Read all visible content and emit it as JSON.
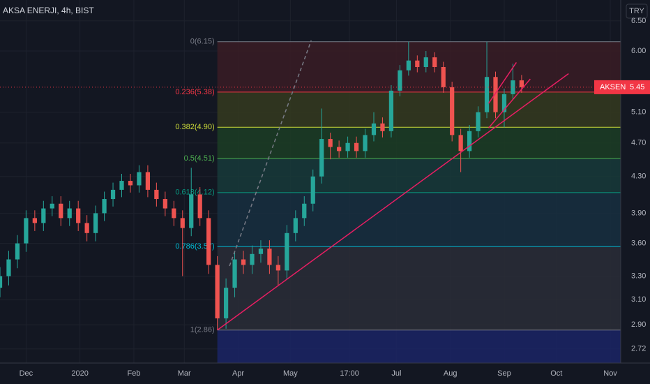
{
  "chart_data": {
    "type": "candlestick",
    "title": "AKSA ENERJI, 4h, BIST",
    "currency": "TRY",
    "log_scale": true,
    "grid": true,
    "up_color": "#26a69a",
    "down_color": "#ef5350",
    "x": [
      15,
      20,
      25,
      30,
      35,
      40,
      45,
      50,
      55,
      60,
      65,
      70,
      75,
      80,
      85,
      90,
      95,
      100,
      105,
      110,
      115,
      120,
      125,
      130,
      135,
      140,
      145,
      150,
      155,
      160,
      165,
      170,
      175,
      180,
      185,
      190,
      195,
      200,
      205,
      210,
      215,
      220,
      225,
      230,
      235,
      240,
      245,
      250,
      255,
      260,
      265,
      270,
      275,
      280,
      285,
      290,
      295,
      300,
      305,
      310,
      315
    ],
    "open": [
      3.2,
      3.3,
      3.45,
      3.6,
      3.85,
      3.8,
      3.95,
      4.0,
      3.85,
      3.95,
      3.8,
      3.7,
      3.9,
      4.05,
      4.15,
      4.25,
      4.2,
      4.35,
      4.15,
      4.05,
      3.95,
      3.85,
      3.75,
      4.1,
      3.85,
      3.4,
      2.95,
      3.2,
      3.45,
      3.4,
      3.5,
      3.55,
      3.4,
      3.35,
      3.7,
      3.85,
      4.0,
      4.3,
      4.75,
      4.65,
      4.6,
      4.7,
      4.6,
      4.8,
      4.95,
      4.85,
      5.4,
      5.7,
      5.85,
      5.75,
      5.9,
      5.75,
      5.45,
      4.8,
      4.6,
      4.85,
      5.1,
      5.6,
      5.1,
      5.35,
      5.55
    ],
    "high": [
      3.38,
      3.53,
      3.68,
      3.93,
      3.93,
      4.03,
      4.08,
      4.08,
      4.03,
      4.03,
      3.88,
      3.98,
      4.13,
      4.23,
      4.33,
      4.33,
      4.43,
      4.43,
      4.23,
      4.13,
      4.03,
      3.93,
      4.4,
      4.18,
      3.93,
      3.48,
      3.28,
      3.53,
      3.53,
      3.58,
      3.63,
      3.63,
      3.48,
      3.78,
      3.93,
      4.08,
      4.38,
      5.15,
      4.83,
      4.73,
      4.78,
      4.78,
      4.88,
      5.1,
      5.03,
      5.48,
      5.78,
      6.15,
      5.93,
      6.0,
      5.98,
      5.83,
      5.53,
      4.88,
      4.93,
      5.18,
      6.15,
      5.68,
      5.43,
      5.8,
      5.63
    ],
    "low": [
      3.12,
      3.22,
      3.37,
      3.52,
      3.72,
      3.72,
      3.87,
      3.77,
      3.77,
      3.72,
      3.62,
      3.62,
      3.82,
      3.97,
      4.07,
      4.12,
      4.12,
      4.07,
      3.97,
      3.87,
      3.77,
      3.3,
      3.67,
      3.77,
      3.32,
      2.86,
      2.87,
      3.12,
      3.32,
      3.32,
      3.42,
      3.32,
      3.22,
      3.27,
      3.62,
      3.77,
      3.92,
      4.22,
      4.5,
      4.52,
      4.52,
      4.52,
      4.52,
      4.72,
      4.77,
      4.77,
      5.32,
      5.62,
      5.67,
      5.67,
      5.67,
      5.37,
      4.72,
      4.35,
      4.52,
      4.77,
      5.02,
      5.02,
      4.9,
      5.27,
      5.37
    ],
    "close": [
      3.3,
      3.45,
      3.6,
      3.85,
      3.8,
      3.95,
      4.0,
      3.85,
      3.95,
      3.8,
      3.7,
      3.9,
      4.05,
      4.15,
      4.25,
      4.2,
      4.35,
      4.15,
      4.05,
      3.95,
      3.85,
      3.75,
      4.1,
      3.85,
      3.4,
      2.95,
      3.2,
      3.45,
      3.4,
      3.5,
      3.55,
      3.4,
      3.35,
      3.7,
      3.85,
      4.0,
      4.3,
      4.75,
      4.65,
      4.6,
      4.7,
      4.6,
      4.8,
      4.95,
      4.85,
      5.4,
      5.7,
      5.85,
      5.75,
      5.9,
      5.75,
      5.45,
      4.8,
      4.6,
      4.85,
      5.1,
      5.6,
      5.1,
      5.35,
      5.55,
      5.45
    ],
    "xlim": [
      15,
      372
    ],
    "xticks": [
      {
        "value": 30,
        "label": "Dec"
      },
      {
        "value": 61,
        "label": "2020"
      },
      {
        "value": 92,
        "label": "Feb"
      },
      {
        "value": 121,
        "label": "Mar"
      },
      {
        "value": 152,
        "label": "Apr"
      },
      {
        "value": 182,
        "label": "May"
      },
      {
        "value": 216,
        "label": "17:00"
      },
      {
        "value": 243,
        "label": "Jul"
      },
      {
        "value": 274,
        "label": "Aug"
      },
      {
        "value": 305,
        "label": "Sep"
      },
      {
        "value": 335,
        "label": "Oct"
      },
      {
        "value": 366,
        "label": "Nov"
      }
    ],
    "ylim": [
      2.62,
      6.87
    ],
    "yticks": [
      {
        "value": 2.72,
        "label": "2.72"
      },
      {
        "value": 2.9,
        "label": "2.90"
      },
      {
        "value": 3.1,
        "label": "3.10"
      },
      {
        "value": 3.3,
        "label": "3.30"
      },
      {
        "value": 3.6,
        "label": "3.60"
      },
      {
        "value": 3.9,
        "label": "3.90"
      },
      {
        "value": 4.3,
        "label": "4.30"
      },
      {
        "value": 4.7,
        "label": "4.70"
      },
      {
        "value": 5.1,
        "label": "5.10"
      },
      {
        "value": 6.0,
        "label": "6.00"
      },
      {
        "value": 6.5,
        "label": "6.50"
      }
    ],
    "last_price": {
      "symbol": "AKSEN",
      "value": 5.45,
      "color": "#f23645"
    },
    "fib": {
      "start_x": 140,
      "levels": [
        {
          "value": 6.15,
          "label": "0(6.15)",
          "color": "#787b86",
          "fill": "#3a1c25"
        },
        {
          "value": 5.38,
          "label": "0.236(5.38)",
          "color": "#f23645",
          "fill": "#35391f"
        },
        {
          "value": 4.9,
          "label": "0.382(4.90)",
          "color": "#cddc39",
          "fill": "#1c3d24"
        },
        {
          "value": 4.51,
          "label": "0.5(4.51)",
          "color": "#4caf50",
          "fill": "#17393a"
        },
        {
          "value": 4.12,
          "label": "0.618(4.12)",
          "color": "#089981",
          "fill": "#172f40"
        },
        {
          "value": 3.57,
          "label": "0.786(3.57)",
          "color": "#00bcd4",
          "fill": "#2a2d37"
        },
        {
          "value": 2.86,
          "label": "1(2.86)",
          "color": "#787b86",
          "fill": "#1b2565"
        }
      ]
    },
    "trendlines": [
      {
        "x": [
          140,
          342
        ],
        "y": [
          2.86,
          5.65
        ],
        "color": "#e91e63",
        "dash": false
      },
      {
        "x": [
          147,
          194
        ],
        "y": [
          3.39,
          6.17
        ],
        "color": "#787b86",
        "dash": true
      },
      {
        "x": [
          296,
          312
        ],
        "y": [
          5.22,
          5.82
        ],
        "color": "#e91e63",
        "dash": false
      },
      {
        "x": [
          296,
          320
        ],
        "y": [
          4.89,
          5.57
        ],
        "color": "#e91e63",
        "dash": false
      }
    ]
  }
}
